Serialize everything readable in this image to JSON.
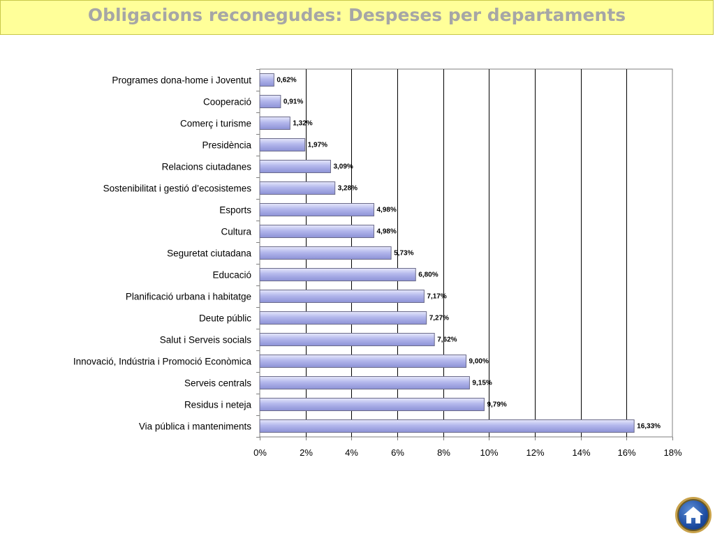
{
  "title": "Obligacions reconegudes: Despeses per departaments",
  "chart_data": {
    "type": "bar",
    "orientation": "horizontal",
    "categories": [
      "Programes dona-home i Joventut",
      "Cooperació",
      "Comerç i turisme",
      "Presidència",
      "Relacions ciutadanes",
      "Sostenibilitat i gestió d’ecosistemes",
      "Esports",
      "Cultura",
      "Seguretat ciutadana",
      "Educació",
      "Planificació urbana i habitatge",
      "Deute públic",
      "Salut i Serveis socials",
      "Innovació, Indústria i Promoció Econòmica",
      "Serveis centrals",
      "Residus i neteja",
      "Via pública i manteniments"
    ],
    "values": [
      0.62,
      0.91,
      1.32,
      1.97,
      3.09,
      3.28,
      4.98,
      4.98,
      5.73,
      6.8,
      7.17,
      7.27,
      7.62,
      9.0,
      9.15,
      9.79,
      16.33
    ],
    "data_labels": [
      "0,62%",
      "0,91%",
      "1,32%",
      "1,97%",
      "3,09%",
      "3,28%",
      "4,98%",
      "4,98%",
      "5,73%",
      "6,80%",
      "7,17%",
      "7,27%",
      "7,62%",
      "9,00%",
      "9,15%",
      "9,79%",
      "16,33%"
    ],
    "xlim": [
      0,
      18
    ],
    "xticks": [
      0,
      2,
      4,
      6,
      8,
      10,
      12,
      14,
      16,
      18
    ],
    "xtick_labels": [
      "0%",
      "2%",
      "4%",
      "6%",
      "8%",
      "10%",
      "12%",
      "14%",
      "16%",
      "18%"
    ],
    "grid": true,
    "legend": "none",
    "bar_color": "#b3b7ec"
  },
  "nav": {
    "home_icon": "home-icon"
  }
}
